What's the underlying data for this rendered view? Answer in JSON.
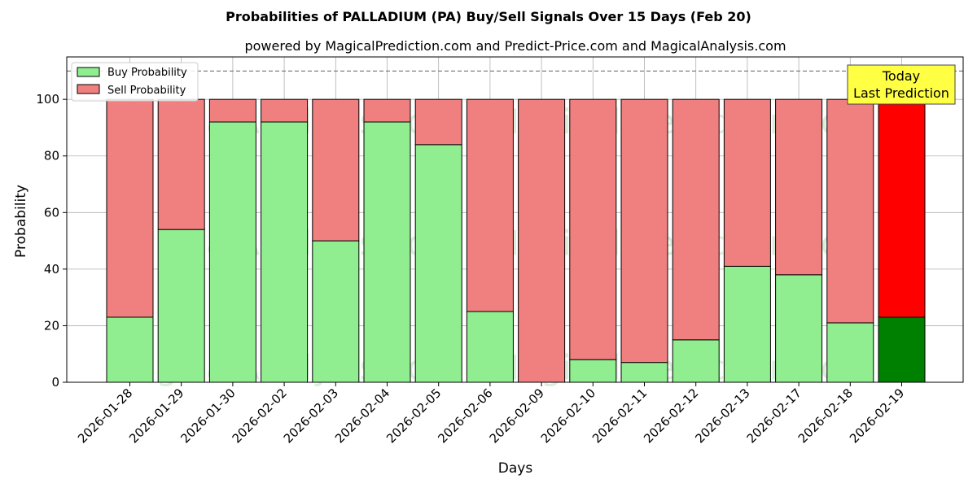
{
  "chart_data": {
    "type": "bar",
    "stacked": true,
    "title": "Probabilities of PALLADIUM (PA) Buy/Sell Signals Over 15 Days (Feb 20)",
    "subtitle": "powered by MagicalPrediction.com and Predict-Price.com and MagicalAnalysis.com",
    "xlabel": "Days",
    "ylabel": "Probability",
    "ylim": [
      0,
      115
    ],
    "yticks": [
      0,
      20,
      40,
      60,
      80,
      100
    ],
    "grid": true,
    "legend_position": "top-left",
    "reference_line": 110,
    "categories": [
      "2026-01-28",
      "2026-01-29",
      "2026-01-30",
      "2026-02-02",
      "2026-02-03",
      "2026-02-04",
      "2026-02-05",
      "2026-02-06",
      "2026-02-09",
      "2026-02-10",
      "2026-02-11",
      "2026-02-12",
      "2026-02-13",
      "2026-02-17",
      "2026-02-18",
      "2026-02-19"
    ],
    "series": [
      {
        "name": "Buy Probability",
        "color": "#90ee90",
        "highlight_color": "#008000",
        "values": [
          23,
          54,
          92,
          92,
          50,
          92,
          84,
          25,
          0,
          8,
          7,
          15,
          41,
          38,
          21,
          23
        ]
      },
      {
        "name": "Sell Probability",
        "color": "#f08080",
        "highlight_color": "#ff0000",
        "values": [
          77,
          46,
          8,
          8,
          50,
          8,
          16,
          75,
          100,
          92,
          93,
          85,
          59,
          62,
          79,
          77
        ]
      }
    ],
    "highlight_index": 15,
    "annotation": {
      "line1": "Today",
      "line2": "Last Prediction",
      "color": "#ffff44"
    },
    "watermarks": [
      "MagicalAnalysis.com",
      "MagicalPrediction.com"
    ]
  }
}
